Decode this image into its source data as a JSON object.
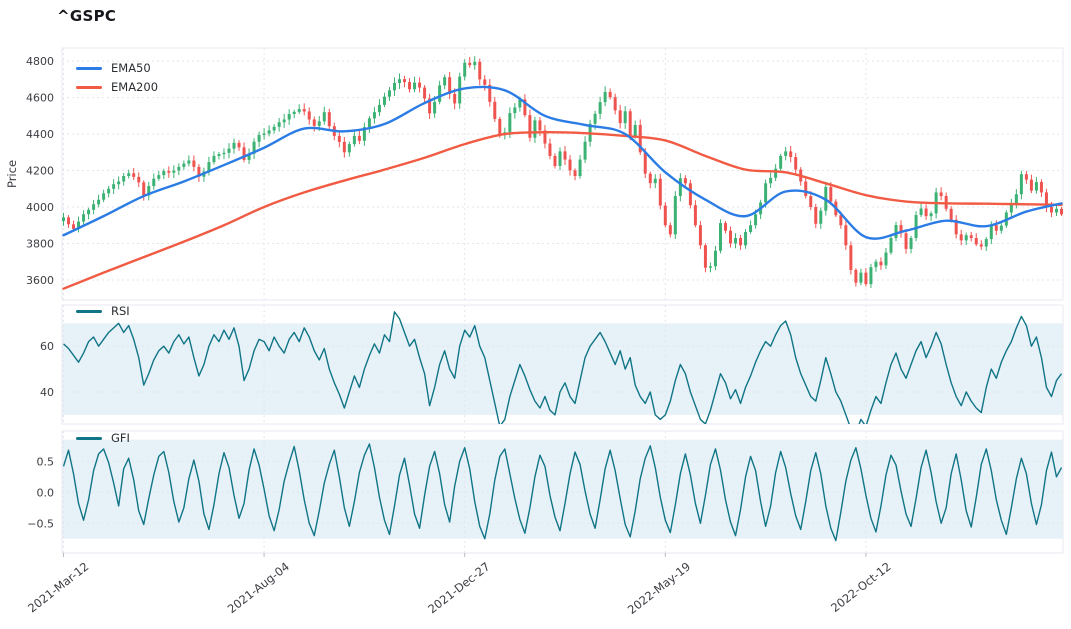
{
  "title": "^GSPC",
  "colors": {
    "up": "#3bb273",
    "down": "#ef5350",
    "ema50": "#2b7ce5",
    "ema200": "#f25b43",
    "oscillator": "#107586",
    "band": "#e7f1f8",
    "grid": "#e4e5ec",
    "panel_border": "#e9eaf0",
    "tick_text": "#3d3d44",
    "title_text": "#15171c"
  },
  "x_axis": {
    "tick_labels": [
      "2021-Mar-12",
      "2021-Aug-04",
      "2021-Dec-27",
      "2022-May-19",
      "2022-Oct-12"
    ],
    "tick_sample_indices": [
      0,
      40,
      80,
      120,
      160
    ]
  },
  "chart_data": {
    "type": "candlestick",
    "panels": [
      {
        "name": "price",
        "ylabel": "Price",
        "ylim": [
          3490,
          4872
        ],
        "yticks": [
          4800,
          4600,
          4400,
          4200,
          4000,
          3800,
          3600
        ],
        "ytick_labels": [
          "4800",
          "4600",
          "4400",
          "4200",
          "4000",
          "3800",
          "3600"
        ],
        "legend": [
          "EMA50",
          "EMA200"
        ],
        "close": [
          3943,
          3905,
          3880,
          3920,
          3960,
          3985,
          4015,
          4040,
          4075,
          4100,
          4125,
          4140,
          4170,
          4185,
          4165,
          4135,
          4063,
          4115,
          4155,
          4175,
          4197,
          4188,
          4200,
          4220,
          4238,
          4255,
          4220,
          4166,
          4195,
          4246,
          4280,
          4290,
          4297,
          4320,
          4352,
          4327,
          4258,
          4292,
          4358,
          4395,
          4403,
          4420,
          4440,
          4465,
          4480,
          4510,
          4522,
          4537,
          4524,
          4480,
          4445,
          4470,
          4520,
          4443,
          4390,
          4357,
          4300,
          4345,
          4390,
          4363,
          4438,
          4486,
          4520,
          4560,
          4605,
          4640,
          4680,
          4701,
          4685,
          4646,
          4682,
          4655,
          4595,
          4513,
          4577,
          4667,
          4712,
          4620,
          4568,
          4715,
          4791,
          4778,
          4796,
          4700,
          4670,
          4577,
          4483,
          4397,
          4410,
          4515,
          4546,
          4590,
          4504,
          4380,
          4475,
          4420,
          4348,
          4280,
          4225,
          4305,
          4260,
          4201,
          4170,
          4260,
          4358,
          4456,
          4511,
          4575,
          4631,
          4602,
          4530,
          4460,
          4525,
          4392,
          4450,
          4300,
          4183,
          4131,
          4155,
          4008,
          3900,
          3850,
          4060,
          4158,
          4130,
          4010,
          3900,
          3790,
          3667,
          3675,
          3760,
          3912,
          3870,
          3800,
          3830,
          3790,
          3863,
          3900,
          3960,
          4025,
          4130,
          4160,
          4210,
          4280,
          4305,
          4274,
          4205,
          4140,
          4060,
          4000,
          3908,
          3980,
          4110,
          4030,
          3955,
          3900,
          3790,
          3655,
          3585,
          3640,
          3577,
          3670,
          3700,
          3680,
          3750,
          3830,
          3901,
          3856,
          3770,
          3830,
          3956,
          3992,
          3950,
          3965,
          4080,
          4060,
          3990,
          3930,
          3850,
          3817,
          3845,
          3830,
          3795,
          3783,
          3824,
          3900,
          3870,
          3898,
          3970,
          4020,
          4070,
          4180,
          4150,
          4090,
          4137,
          4080,
          4000,
          3970,
          3990,
          3960
        ],
        "ema50_knot_step": 8,
        "ema50_knots": [
          3845,
          3950,
          4060,
          4140,
          4230,
          4325,
          4430,
          4415,
          4455,
          4570,
          4650,
          4640,
          4500,
          4450,
          4400,
          4190,
          4040,
          3950,
          4085,
          4040,
          3835,
          3870,
          3925,
          3895,
          3975,
          4020
        ],
        "ema200_knot_step": 8,
        "ema200_knots": [
          3552,
          3640,
          3725,
          3810,
          3900,
          4000,
          4080,
          4145,
          4205,
          4270,
          4345,
          4400,
          4410,
          4405,
          4390,
          4365,
          4280,
          4205,
          4190,
          4130,
          4065,
          4030,
          4020,
          4018,
          4015,
          4012
        ]
      },
      {
        "name": "rsi",
        "legend": "RSI",
        "ylim": [
          26,
          78
        ],
        "yticks": [
          60,
          40
        ],
        "ytick_labels": [
          "60",
          "40"
        ],
        "band": [
          30,
          70
        ],
        "values": [
          61,
          59,
          56,
          53,
          57,
          62,
          64,
          60,
          63,
          66,
          68,
          70,
          66,
          69,
          63,
          55,
          43,
          48,
          54,
          58,
          60,
          57,
          62,
          65,
          61,
          64,
          55,
          47,
          52,
          60,
          65,
          62,
          67,
          63,
          68,
          60,
          45,
          50,
          58,
          63,
          62,
          58,
          64,
          60,
          57,
          63,
          66,
          62,
          68,
          64,
          58,
          54,
          59,
          50,
          44,
          39,
          33,
          40,
          47,
          42,
          50,
          56,
          61,
          57,
          65,
          62,
          75,
          72,
          66,
          60,
          63,
          55,
          48,
          34,
          42,
          52,
          58,
          50,
          46,
          60,
          67,
          64,
          69,
          60,
          55,
          45,
          35,
          25,
          28,
          38,
          45,
          52,
          47,
          41,
          36,
          33,
          38,
          32,
          30,
          40,
          44,
          38,
          35,
          45,
          55,
          60,
          63,
          66,
          62,
          57,
          52,
          58,
          50,
          55,
          43,
          38,
          35,
          40,
          30,
          28,
          30,
          36,
          45,
          52,
          48,
          40,
          34,
          28,
          26,
          32,
          40,
          48,
          44,
          37,
          41,
          35,
          42,
          47,
          53,
          58,
          62,
          60,
          65,
          69,
          71,
          65,
          55,
          48,
          43,
          38,
          36,
          45,
          55,
          48,
          40,
          36,
          30,
          24,
          22,
          28,
          25,
          32,
          38,
          35,
          44,
          52,
          57,
          50,
          46,
          52,
          58,
          62,
          55,
          60,
          66,
          61,
          52,
          44,
          38,
          34,
          40,
          36,
          33,
          31,
          42,
          50,
          46,
          53,
          58,
          62,
          68,
          73,
          69,
          60,
          64,
          55,
          42,
          38,
          45,
          48
        ]
      },
      {
        "name": "gfi",
        "legend": "GFI",
        "ylim": [
          -0.98,
          0.99
        ],
        "yticks": [
          0.5,
          0.0,
          -0.5
        ],
        "ytick_labels": [
          "0.5",
          "0.0",
          "−0.5"
        ],
        "band": [
          -0.75,
          0.85
        ],
        "values": [
          0.42,
          0.68,
          0.3,
          -0.18,
          -0.45,
          -0.12,
          0.35,
          0.62,
          0.7,
          0.48,
          0.15,
          -0.22,
          0.38,
          0.55,
          0.2,
          -0.3,
          -0.52,
          -0.1,
          0.28,
          0.58,
          0.66,
          0.32,
          -0.15,
          -0.48,
          -0.25,
          0.22,
          0.52,
          0.18,
          -0.35,
          -0.6,
          -0.2,
          0.3,
          0.64,
          0.4,
          -0.05,
          -0.42,
          -0.18,
          0.36,
          0.7,
          0.44,
          0.05,
          -0.38,
          -0.62,
          -0.28,
          0.18,
          0.48,
          0.74,
          0.35,
          -0.12,
          -0.5,
          -0.7,
          -0.3,
          0.15,
          0.45,
          0.68,
          0.25,
          -0.25,
          -0.55,
          -0.15,
          0.32,
          0.6,
          0.78,
          0.4,
          -0.08,
          -0.45,
          -0.68,
          -0.22,
          0.28,
          0.55,
          0.12,
          -0.35,
          -0.58,
          -0.05,
          0.42,
          0.66,
          0.3,
          -0.2,
          -0.48,
          0.1,
          0.5,
          0.72,
          0.38,
          -0.15,
          -0.55,
          -0.75,
          -0.35,
          0.2,
          0.58,
          0.7,
          0.3,
          -0.1,
          -0.44,
          -0.66,
          -0.25,
          0.25,
          0.6,
          0.42,
          -0.05,
          -0.4,
          -0.62,
          -0.18,
          0.3,
          0.65,
          0.45,
          0.02,
          -0.35,
          -0.58,
          -0.12,
          0.38,
          0.68,
          0.35,
          -0.1,
          -0.52,
          -0.72,
          -0.3,
          0.22,
          0.55,
          0.75,
          0.4,
          -0.08,
          -0.45,
          -0.65,
          -0.2,
          0.3,
          0.62,
          0.28,
          -0.18,
          -0.5,
          -0.05,
          0.45,
          0.7,
          0.36,
          -0.12,
          -0.48,
          -0.7,
          -0.28,
          0.25,
          0.58,
          0.35,
          -0.15,
          -0.55,
          -0.22,
          0.32,
          0.66,
          0.4,
          -0.02,
          -0.38,
          -0.6,
          -0.15,
          0.35,
          0.64,
          0.3,
          -0.22,
          -0.58,
          -0.78,
          -0.32,
          0.18,
          0.52,
          0.72,
          0.38,
          -0.05,
          -0.42,
          -0.64,
          -0.22,
          0.28,
          0.6,
          0.44,
          0.02,
          -0.35,
          -0.55,
          -0.1,
          0.4,
          0.68,
          0.32,
          -0.15,
          -0.5,
          -0.25,
          0.3,
          0.62,
          0.2,
          -0.3,
          -0.56,
          -0.08,
          0.45,
          0.7,
          0.35,
          -0.12,
          -0.45,
          -0.68,
          -0.25,
          0.22,
          0.55,
          0.3,
          -0.18,
          -0.52,
          -0.2,
          0.35,
          0.65,
          0.25,
          0.4
        ]
      }
    ]
  }
}
